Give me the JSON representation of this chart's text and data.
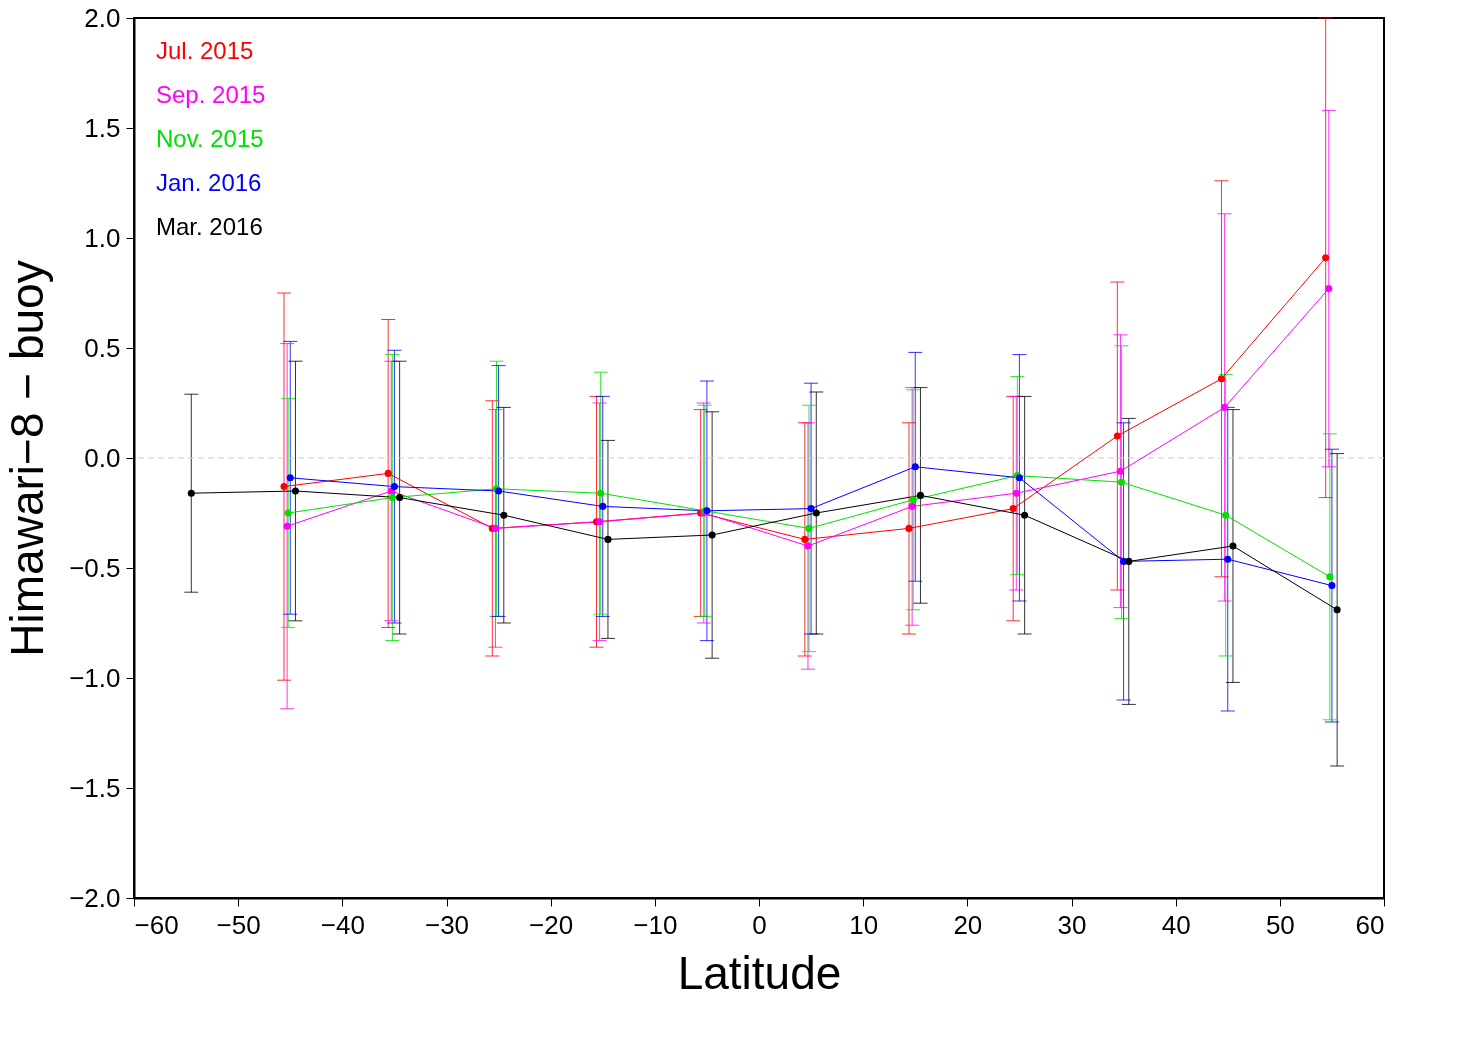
{
  "chart_data": {
    "type": "line",
    "xlabel": "Latitude",
    "ylabel": "Himawari−8 − buoy",
    "xlim": [
      -60,
      60
    ],
    "xticks": [
      {
        "value": -60,
        "label": "−60"
      },
      {
        "value": -50,
        "label": "−50"
      },
      {
        "value": -40,
        "label": "−40"
      },
      {
        "value": -30,
        "label": "−30"
      },
      {
        "value": -20,
        "label": "−20"
      },
      {
        "value": -10,
        "label": "−10"
      },
      0,
      10,
      20,
      30,
      40,
      50,
      60
    ],
    "ylim": [
      -2.0,
      2.0
    ],
    "yticks": [
      {
        "value": -2.0,
        "label": "−2.0"
      },
      {
        "value": -1.5,
        "label": "−1.5"
      },
      {
        "value": -1.0,
        "label": "−1.0"
      },
      {
        "value": -0.5,
        "label": "−0.5"
      },
      {
        "value": 0,
        "label": "0.0"
      },
      {
        "value": 0.5,
        "label": "0.5"
      },
      {
        "value": 1,
        "label": "1.0"
      },
      {
        "value": 1.5,
        "label": "1.5"
      },
      {
        "value": 2,
        "label": "2.0"
      }
    ],
    "grid": false,
    "legend": "top left",
    "marker": "circle",
    "line_style": "solid",
    "ref_lines": [
      {
        "axis": "y",
        "value": 0,
        "color": "#cccccc",
        "line_style": "dashed"
      }
    ],
    "series": [
      {
        "name": "Jul. 2015",
        "color": "#ff0000",
        "x": [
          -45.6,
          -35.6,
          -25.6,
          -15.6,
          -5.6,
          4.4,
          14.4,
          24.4,
          34.4,
          44.4,
          54.4
        ],
        "values": [
          -0.13,
          -0.07,
          -0.32,
          -0.29,
          -0.25,
          -0.37,
          -0.32,
          -0.23,
          0.1,
          0.36,
          0.91
        ],
        "errors": [
          0.88,
          0.7,
          0.58,
          0.57,
          0.47,
          0.53,
          0.48,
          0.51,
          0.7,
          0.9,
          1.09
        ]
      },
      {
        "name": "Sep. 2015",
        "color": "#ff00ff",
        "x": [
          -45.3,
          -35.3,
          -25.3,
          -15.3,
          -5.3,
          4.7,
          14.7,
          24.7,
          34.7,
          44.7,
          54.7
        ],
        "values": [
          -0.31,
          -0.15,
          -0.32,
          -0.29,
          -0.25,
          -0.4,
          -0.22,
          -0.16,
          -0.06,
          0.23,
          0.77
        ],
        "errors": [
          0.83,
          0.59,
          0.54,
          0.54,
          0.5,
          0.56,
          0.54,
          0.44,
          0.62,
          0.88,
          0.81
        ]
      },
      {
        "name": "Nov. 2015",
        "color": "#00e000",
        "x": [
          -45.2,
          -35.2,
          -25.2,
          -15.2,
          -5.2,
          4.8,
          14.8,
          24.8,
          34.8,
          44.8,
          54.8
        ],
        "values": [
          -0.25,
          -0.18,
          -0.14,
          -0.16,
          -0.24,
          -0.32,
          -0.19,
          -0.08,
          -0.11,
          -0.26,
          -0.54
        ],
        "errors": [
          0.52,
          0.65,
          0.58,
          0.55,
          0.48,
          0.56,
          0.5,
          0.45,
          0.62,
          0.64,
          0.65
        ]
      },
      {
        "name": "Jan. 2016",
        "color": "#0000ff",
        "x": [
          -45.0,
          -35.0,
          -25.0,
          -15.0,
          -5.0,
          5.0,
          15.0,
          25.0,
          35.0,
          45.0,
          55.0
        ],
        "values": [
          -0.09,
          -0.13,
          -0.15,
          -0.22,
          -0.24,
          -0.23,
          -0.04,
          -0.09,
          -0.47,
          -0.46,
          -0.58
        ],
        "errors": [
          0.62,
          0.62,
          0.57,
          0.5,
          0.59,
          0.57,
          0.52,
          0.56,
          0.63,
          0.69,
          0.62
        ]
      },
      {
        "name": "Mar. 2016",
        "color": "#000000",
        "x": [
          -54.5,
          -44.5,
          -34.5,
          -24.5,
          -14.5,
          -4.5,
          5.5,
          15.5,
          25.5,
          35.5,
          45.5,
          55.5
        ],
        "values": [
          -0.16,
          -0.15,
          -0.18,
          -0.26,
          -0.37,
          -0.35,
          -0.25,
          -0.17,
          -0.26,
          -0.47,
          -0.4,
          -0.69
        ],
        "errors": [
          0.45,
          0.59,
          0.62,
          0.49,
          0.45,
          0.56,
          0.55,
          0.49,
          0.54,
          0.65,
          0.62,
          0.71
        ]
      }
    ]
  }
}
